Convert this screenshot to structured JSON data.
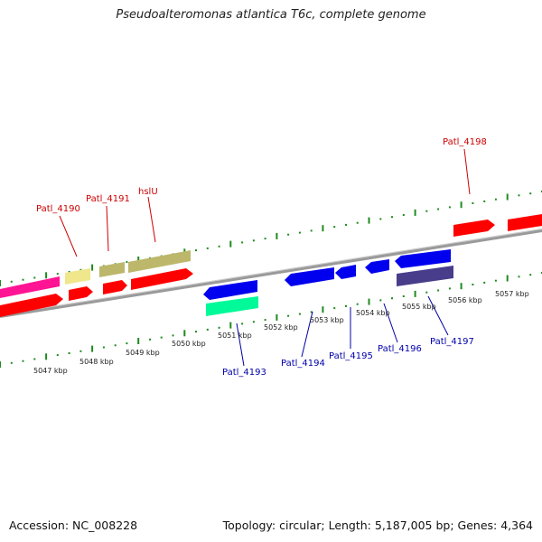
{
  "title": "Pseudoalteromonas atlantica T6c, complete genome",
  "footer": {
    "accession": "Accession: NC_008228",
    "stats": "Topology: circular; Length: 5,187,005 bp; Genes: 4,364"
  },
  "colors": {
    "forward_label": "#cc0000",
    "reverse_label": "#0000aa",
    "backbone": "#808080",
    "dots": "#1f8a1f"
  },
  "kbp_ticks": [
    "5047 kbp",
    "5048 kbp",
    "5049 kbp",
    "5050 kbp",
    "5051 kbp",
    "5052 kbp",
    "5053 kbp",
    "5054 kbp",
    "5055 kbp",
    "5056 kbp",
    "5057 kbp"
  ],
  "gene_labels": {
    "patl_4190": "Patl_4190",
    "patl_4191": "Patl_4191",
    "hslu": "hslU",
    "patl_4198": "Patl_4198",
    "patl_4193": "Patl_4193",
    "patl_4194": "Patl_4194",
    "patl_4195": "Patl_4195",
    "patl_4196": "Patl_4196",
    "patl_4197": "Patl_4197"
  }
}
